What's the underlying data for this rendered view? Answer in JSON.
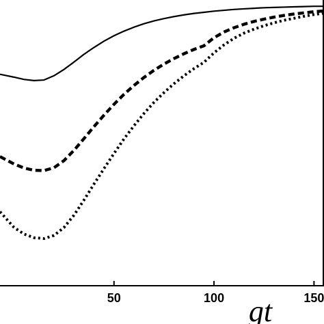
{
  "chart_data": {
    "type": "line",
    "xlabel": "gt",
    "ylabel": "",
    "xlim": [
      -7,
      155
    ],
    "ylim": [
      0,
      1
    ],
    "x_ticks": [
      {
        "value": 50,
        "label": "50"
      },
      {
        "value": 100,
        "label": "100"
      },
      {
        "value": 150,
        "label": "150"
      }
    ],
    "grid": false,
    "series": [
      {
        "style": "solid",
        "color": "#000000",
        "x": [
          -7,
          0,
          5,
          10,
          15,
          20,
          25,
          30,
          35,
          40,
          45,
          50,
          55,
          60,
          65,
          70,
          75,
          80,
          85,
          90,
          95,
          100,
          105,
          110,
          115,
          120,
          125,
          130,
          135,
          140,
          145,
          150,
          155
        ],
        "y": [
          0.74,
          0.73,
          0.722,
          0.718,
          0.72,
          0.735,
          0.757,
          0.783,
          0.81,
          0.834,
          0.856,
          0.875,
          0.891,
          0.905,
          0.917,
          0.927,
          0.935,
          0.942,
          0.948,
          0.953,
          0.957,
          0.961,
          0.964,
          0.967,
          0.969,
          0.971,
          0.973,
          0.974,
          0.975,
          0.976,
          0.977,
          0.978,
          0.978
        ]
      },
      {
        "style": "dashed",
        "color": "#000000",
        "x": [
          -7,
          0,
          5,
          10,
          15,
          20,
          25,
          30,
          35,
          40,
          45,
          50,
          55,
          60,
          65,
          70,
          75,
          80,
          85,
          90,
          95,
          100,
          105,
          110,
          115,
          120,
          125,
          130,
          135,
          140,
          145,
          150,
          155
        ],
        "y": [
          0.452,
          0.426,
          0.412,
          0.404,
          0.403,
          0.413,
          0.438,
          0.474,
          0.515,
          0.557,
          0.597,
          0.635,
          0.67,
          0.701,
          0.729,
          0.754,
          0.776,
          0.795,
          0.812,
          0.827,
          0.84,
          0.868,
          0.888,
          0.903,
          0.915,
          0.925,
          0.933,
          0.94,
          0.946,
          0.951,
          0.955,
          0.959,
          0.962
        ]
      },
      {
        "style": "dotted",
        "color": "#000000",
        "x": [
          -7,
          0,
          5,
          10,
          15,
          20,
          25,
          30,
          35,
          40,
          45,
          50,
          55,
          60,
          65,
          70,
          75,
          80,
          85,
          90,
          95,
          100,
          105,
          110,
          115,
          120,
          125,
          130,
          135,
          140,
          145,
          150,
          155
        ],
        "y": [
          0.259,
          0.204,
          0.181,
          0.168,
          0.165,
          0.176,
          0.204,
          0.247,
          0.3,
          0.356,
          0.41,
          0.463,
          0.514,
          0.56,
          0.603,
          0.642,
          0.676,
          0.707,
          0.735,
          0.76,
          0.782,
          0.815,
          0.843,
          0.866,
          0.884,
          0.898,
          0.91,
          0.92,
          0.929,
          0.936,
          0.943,
          0.949,
          0.954
        ]
      }
    ]
  }
}
